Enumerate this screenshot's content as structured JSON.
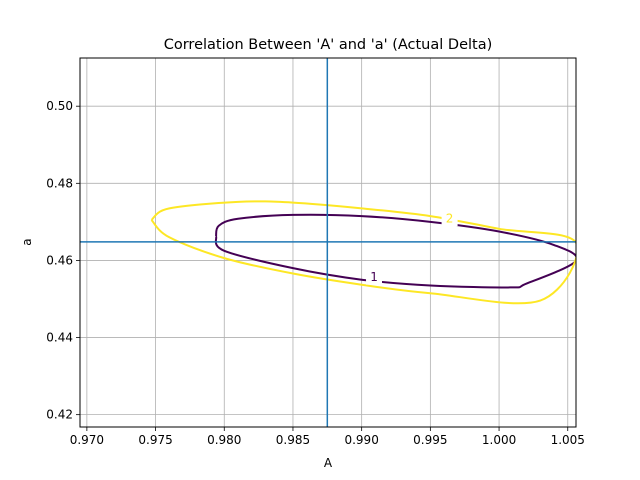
{
  "chart_data": {
    "type": "contour",
    "title": "Correlation Between 'A' and 'a' (Actual Delta)",
    "xlabel": "A",
    "ylabel": "a",
    "xlim": [
      0.9695,
      1.0056
    ],
    "ylim": [
      0.4168,
      0.5125
    ],
    "grid": true,
    "xticks": [
      0.97,
      0.975,
      0.98,
      0.985,
      0.99,
      0.995,
      1.0,
      1.005
    ],
    "xtick_labels": [
      "0.970",
      "0.975",
      "0.980",
      "0.985",
      "0.990",
      "0.995",
      "1.000",
      "1.005"
    ],
    "yticks": [
      0.42,
      0.44,
      0.46,
      0.48,
      0.5
    ],
    "ytick_labels": [
      "0.42",
      "0.44",
      "0.46",
      "0.48",
      "0.50"
    ],
    "reference_lines": {
      "vertical_x": 0.9875,
      "horizontal_y": 0.4648,
      "color": "#1f77b4"
    },
    "contours": [
      {
        "level_label": "1",
        "color": "#440154",
        "label_at": [
          0.9909,
          0.4558
        ],
        "points": [
          [
            0.9794,
            0.4662
          ],
          [
            0.9796,
            0.469
          ],
          [
            0.981,
            0.4708
          ],
          [
            0.985,
            0.4718
          ],
          [
            0.99,
            0.4715
          ],
          [
            0.995,
            0.47
          ],
          [
            1.0,
            0.4675
          ],
          [
            1.004,
            0.464
          ],
          [
            1.0056,
            0.4599
          ],
          [
            1.002,
            0.454
          ],
          [
            1.0008,
            0.453
          ],
          [
            0.995,
            0.4535
          ],
          [
            0.99,
            0.455
          ],
          [
            0.985,
            0.458
          ],
          [
            0.98,
            0.4625
          ],
          [
            0.9794,
            0.4662
          ]
        ]
      },
      {
        "level_label": "2",
        "color": "#fde725",
        "label_at": [
          0.9964,
          0.471
        ],
        "points": [
          [
            0.9747,
            0.4705
          ],
          [
            0.976,
            0.4735
          ],
          [
            0.981,
            0.4752
          ],
          [
            0.985,
            0.475
          ],
          [
            0.99,
            0.4735
          ],
          [
            0.995,
            0.4715
          ],
          [
            1.0,
            0.4682
          ],
          [
            1.0056,
            0.4646
          ],
          [
            1.003,
            0.4496
          ],
          [
            0.995,
            0.4515
          ],
          [
            0.99,
            0.4537
          ],
          [
            0.985,
            0.4566
          ],
          [
            0.98,
            0.4606
          ],
          [
            0.976,
            0.466
          ],
          [
            0.9747,
            0.4705
          ]
        ]
      }
    ]
  }
}
